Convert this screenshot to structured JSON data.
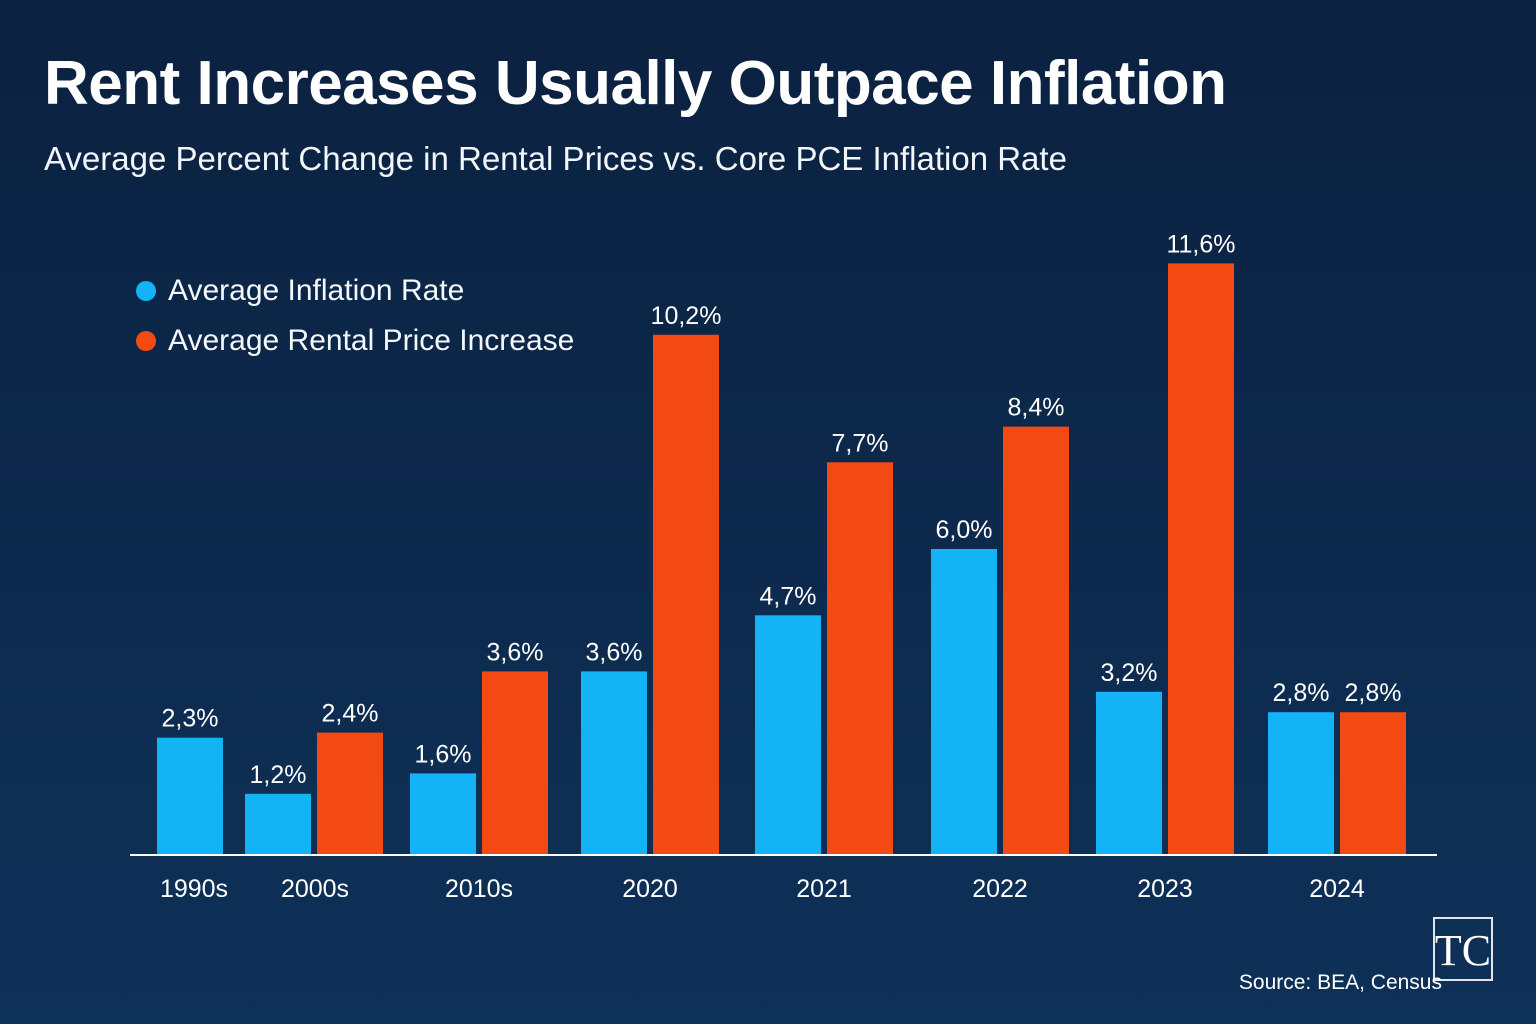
{
  "colors": {
    "background": "#0d2a4e",
    "inflation": "#13b3f5",
    "rent": "#f24a12",
    "axis": "#ffffff"
  },
  "source": "Source: BEA, Census",
  "logo": {
    "icon": "tc-monogram-icon",
    "text": "TC"
  },
  "chart_data": {
    "type": "bar",
    "title": "Rent Increases Usually Outpace Inflation",
    "subtitle": "Average Percent Change in Rental Prices vs. Core PCE Inflation Rate",
    "xlabel": "",
    "ylabel": "",
    "categories": [
      "1990s",
      "2000s",
      "2010s",
      "2020",
      "2021",
      "2022",
      "2023",
      "2024"
    ],
    "series": [
      {
        "name": "Average Inflation Rate",
        "color": "#13b3f5",
        "values": [
          2.3,
          1.2,
          1.6,
          3.6,
          4.7,
          6.0,
          3.2,
          2.8
        ],
        "labels": [
          "2,3%",
          "1,2%",
          "1,6%",
          "3,6%",
          "4,7%",
          "6,0%",
          "3,2%",
          "2,8%"
        ]
      },
      {
        "name": "Average Rental Price Increase",
        "color": "#f24a12",
        "values": [
          null,
          2.4,
          3.6,
          10.2,
          7.7,
          8.4,
          11.6,
          2.8
        ],
        "labels": [
          null,
          "2,4%",
          "3,6%",
          "10,2%",
          "7,7%",
          "8,4%",
          "11,6%",
          "2,8%"
        ]
      }
    ],
    "legend": "top-left",
    "grid": false
  }
}
